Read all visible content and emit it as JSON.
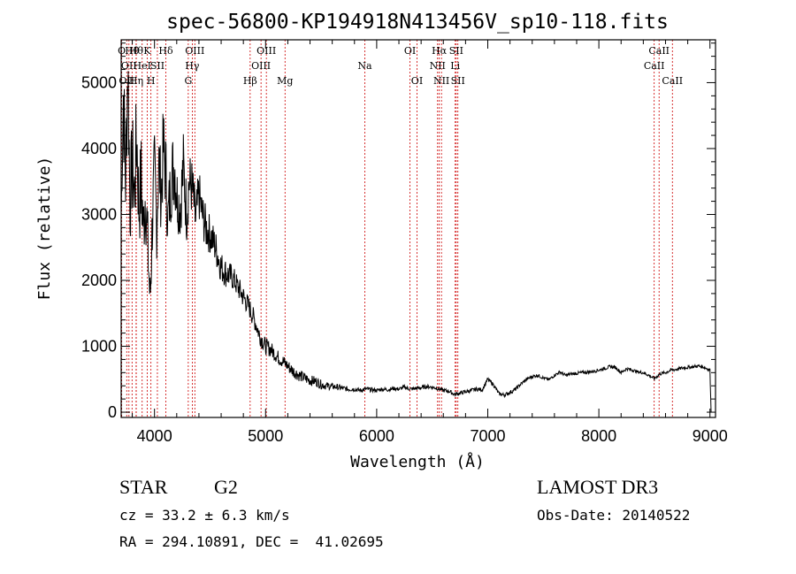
{
  "chart_data": {
    "type": "line",
    "title": "spec-56800-KP194918N413456V_sp10-118.fits",
    "xlabel": "Wavelength (Å)",
    "ylabel": "Flux (relative)",
    "xlim": [
      3700,
      9050
    ],
    "ylim": [
      -80,
      5650
    ],
    "xticks": [
      4000,
      5000,
      6000,
      7000,
      8000,
      9000
    ],
    "yticks": [
      0,
      1000,
      2000,
      3000,
      4000,
      5000
    ],
    "line_color": "#000000",
    "marker_color": "#cc0000",
    "grid": false,
    "series": [
      {
        "x": [
          3700,
          3720,
          3740,
          3760,
          3780,
          3800,
          3820,
          3840,
          3860,
          3880,
          3900,
          3920,
          3940,
          3960,
          3970,
          3980,
          4000,
          4020,
          4040,
          4060,
          4080,
          4100,
          4120,
          4150,
          4180,
          4200,
          4230,
          4260,
          4290,
          4310,
          4340,
          4370,
          4400,
          4430,
          4460,
          4500,
          4550,
          4600,
          4650,
          4700,
          4750,
          4800,
          4850,
          4900,
          4950,
          5000,
          5050,
          5100,
          5150,
          5200,
          5250,
          5300,
          5350,
          5400,
          5450,
          5500,
          5550,
          5600,
          5650,
          5700,
          5750,
          5800,
          5850,
          5900,
          5950,
          6000,
          6050,
          6100,
          6150,
          6200,
          6250,
          6300,
          6350,
          6400,
          6450,
          6500,
          6550,
          6600,
          6650,
          6700,
          6750,
          6800,
          6850,
          6900,
          6950,
          7000,
          7050,
          7100,
          7150,
          7200,
          7250,
          7300,
          7350,
          7400,
          7450,
          7500,
          7550,
          7600,
          7650,
          7700,
          7750,
          7800,
          7850,
          7900,
          7950,
          8000,
          8050,
          8100,
          8150,
          8200,
          8250,
          8300,
          8350,
          8400,
          8450,
          8500,
          8550,
          8600,
          8650,
          8700,
          8750,
          8800,
          8850,
          8900,
          8950,
          9000,
          9010
        ],
        "y": [
          3000,
          4800,
          3500,
          5300,
          3200,
          3800,
          3300,
          4200,
          3100,
          3500,
          2800,
          3400,
          2500,
          1700,
          2200,
          2900,
          3600,
          2900,
          3800,
          3300,
          4000,
          3700,
          2900,
          3500,
          3800,
          3300,
          3100,
          3700,
          3000,
          3500,
          3400,
          2900,
          3300,
          3000,
          2800,
          2700,
          2500,
          2200,
          2100,
          2050,
          1900,
          1750,
          1600,
          1400,
          1150,
          1000,
          950,
          850,
          780,
          700,
          620,
          560,
          520,
          480,
          470,
          420,
          400,
          390,
          380,
          360,
          350,
          350,
          330,
          350,
          340,
          330,
          350,
          340,
          360,
          350,
          380,
          350,
          360,
          370,
          390,
          380,
          360,
          330,
          320,
          270,
          290,
          310,
          330,
          350,
          340,
          500,
          420,
          280,
          260,
          300,
          350,
          430,
          500,
          540,
          560,
          520,
          490,
          560,
          610,
          560,
          580,
          590,
          600,
          610,
          620,
          640,
          660,
          690,
          680,
          600,
          660,
          640,
          610,
          600,
          560,
          510,
          580,
          600,
          640,
          650,
          670,
          680,
          690,
          700,
          680,
          640,
          0
        ],
        "noise": [
          200,
          900,
          700,
          900,
          700,
          800,
          800,
          900,
          700,
          800,
          600,
          800,
          600,
          500,
          500,
          600,
          700,
          600,
          600,
          600,
          700,
          700,
          500,
          600,
          700,
          500,
          500,
          600,
          450,
          500,
          450,
          400,
          400,
          350,
          350,
          300,
          280,
          250,
          220,
          200,
          180,
          180,
          160,
          150,
          140,
          130,
          120,
          110,
          110,
          100,
          100,
          90,
          90,
          80,
          80,
          70,
          60,
          50,
          45,
          40,
          40,
          35,
          35,
          35,
          35,
          30,
          30,
          30,
          30,
          30,
          30,
          30,
          30,
          30,
          30,
          30,
          30,
          30,
          30,
          30,
          30,
          30,
          30,
          30,
          30,
          30,
          30,
          30,
          30,
          30,
          30,
          25,
          25,
          25,
          25,
          25,
          25,
          25,
          25,
          25,
          25,
          25,
          25,
          25,
          25,
          25,
          25,
          25,
          25,
          25,
          25,
          25,
          25,
          25,
          25,
          25,
          25,
          25,
          25,
          25,
          25,
          25,
          25,
          25,
          25,
          25,
          0
        ]
      }
    ],
    "lines": [
      {
        "x": 3705,
        "row": 0,
        "label": "O"
      },
      {
        "x": 3750,
        "row": 2,
        "label": "OII"
      },
      {
        "x": 3770,
        "row": 1,
        "label": "OII"
      },
      {
        "x": 3798,
        "row": 0,
        "label": "Hθ"
      },
      {
        "x": 3835,
        "row": 2,
        "label": "Hη"
      },
      {
        "x": 3835,
        "row": 0,
        "label": "Hθ"
      },
      {
        "x": 3889,
        "row": 1,
        "label": "HeI"
      },
      {
        "x": 3934,
        "row": 0,
        "label": "K"
      },
      {
        "x": 3968,
        "row": 2,
        "label": "H"
      },
      {
        "x": 4026,
        "row": 1,
        "label": "SII"
      },
      {
        "x": 4102,
        "row": 0,
        "label": "Hδ"
      },
      {
        "x": 4304,
        "row": 2,
        "label": "G"
      },
      {
        "x": 4340,
        "row": 1,
        "label": "Hγ"
      },
      {
        "x": 4363,
        "row": 0,
        "label": "OIII"
      },
      {
        "x": 4861,
        "row": 2,
        "label": "Hβ"
      },
      {
        "x": 4959,
        "row": 1,
        "label": "OIII"
      },
      {
        "x": 5007,
        "row": 0,
        "label": "OIII"
      },
      {
        "x": 5175,
        "row": 2,
        "label": "Mg"
      },
      {
        "x": 5893,
        "row": 1,
        "label": "Na"
      },
      {
        "x": 6300,
        "row": 0,
        "label": "OI"
      },
      {
        "x": 6363,
        "row": 2,
        "label": "OI"
      },
      {
        "x": 6548,
        "row": 1,
        "label": "NII"
      },
      {
        "x": 6563,
        "row": 0,
        "label": "Hα"
      },
      {
        "x": 6583,
        "row": 2,
        "label": "NII"
      },
      {
        "x": 6707,
        "row": 1,
        "label": "Li"
      },
      {
        "x": 6716,
        "row": 0,
        "label": "SII"
      },
      {
        "x": 6731,
        "row": 2,
        "label": "SII"
      },
      {
        "x": 8498,
        "row": 1,
        "label": "CaII"
      },
      {
        "x": 8542,
        "row": 0,
        "label": "CaII"
      },
      {
        "x": 8662,
        "row": 2,
        "label": "CaII"
      }
    ]
  },
  "info": {
    "class_label": "STAR",
    "subclass": "G2",
    "cz": "cz = 33.2 ± 6.3 km/s",
    "coords": "RA = 294.10891, DEC =  41.02695",
    "survey": "LAMOST DR3",
    "obs_date": "Obs-Date: 20140522"
  }
}
